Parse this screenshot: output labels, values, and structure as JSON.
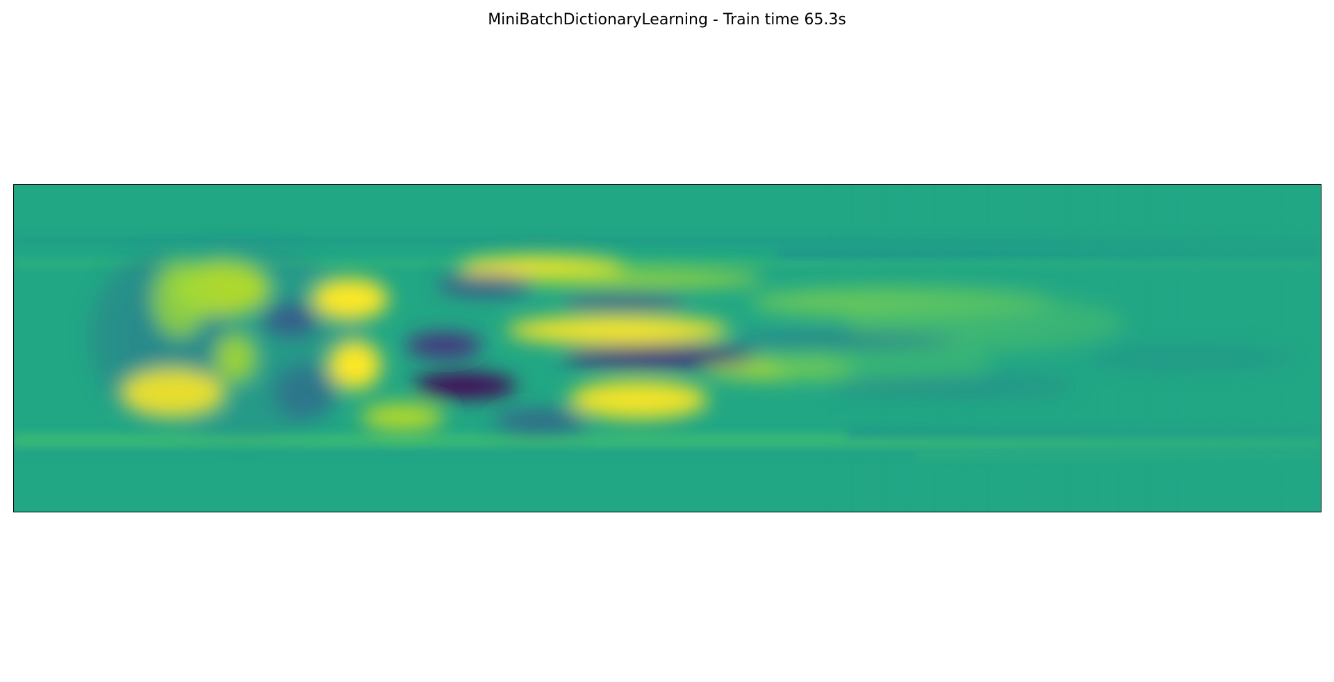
{
  "figure": {
    "title": "MiniBatchDictionaryLearning - Train time 65.3s"
  },
  "chart_data": {
    "type": "heatmap",
    "title": "MiniBatchDictionaryLearning - Train time 65.3s",
    "colormap": "viridis",
    "background_value": 0,
    "xticks": [],
    "yticks": [],
    "grid": false,
    "legend": "none",
    "colors": {
      "neutral": "#22a785",
      "high": "#fde725",
      "low": "#440154",
      "frame": "#000000"
    }
  }
}
